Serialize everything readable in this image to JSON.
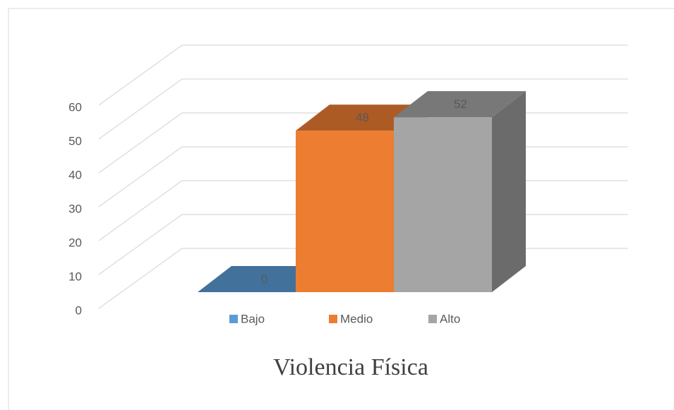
{
  "chart_data": {
    "type": "bar3d",
    "title": "Violencia Física",
    "series": [
      {
        "name": "Bajo",
        "color": "#5b9bd5",
        "values": [
          0
        ]
      },
      {
        "name": "Medio",
        "color": "#ed7d31",
        "values": [
          48
        ]
      },
      {
        "name": "Alto",
        "color": "#a5a5a5",
        "values": [
          52
        ]
      }
    ],
    "ylim": [
      0,
      60
    ],
    "yticks": [
      0,
      10,
      20,
      30,
      40,
      50,
      60
    ],
    "grid": true,
    "legend": "bottom"
  }
}
